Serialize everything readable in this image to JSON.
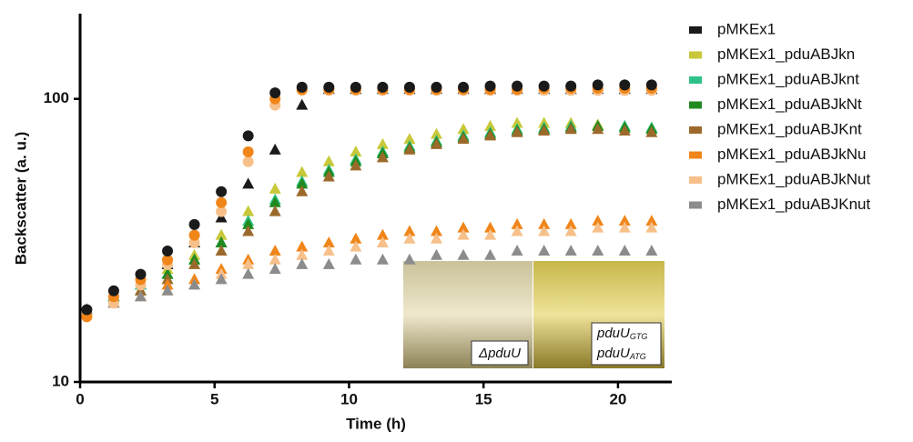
{
  "chart_data": {
    "type": "scatter",
    "x_label": "Time (h)",
    "y_label": "Backscatter (a. u.)",
    "xlim": [
      0,
      22
    ],
    "xticks": [
      0,
      5,
      10,
      15,
      20
    ],
    "ylim": [
      10,
      200
    ],
    "yticks": [
      10,
      100
    ],
    "log_y": true,
    "legend": "right",
    "x": [
      0.25,
      1.25,
      2.25,
      3.25,
      4.25,
      5.25,
      6.25,
      7.25,
      8.25,
      9.25,
      10.25,
      11.25,
      12.25,
      13.25,
      14.25,
      15.25,
      16.25,
      17.25,
      18.25,
      19.25,
      20.25,
      21.25
    ],
    "series": [
      {
        "name": "pMKEx1",
        "color": "#1a1a1a",
        "marker": "triangle",
        "in_legend": true,
        "values": [
          18,
          20,
          22,
          26,
          31,
          38,
          50,
          66,
          95,
          108,
          108,
          108,
          108,
          108,
          108,
          108,
          108,
          108,
          108,
          108,
          108,
          108
        ]
      },
      {
        "name": "pMKEx1_pduABJkn",
        "color": "#c8c83a",
        "marker": "triangle",
        "in_legend": true,
        "values": [
          18,
          20,
          22,
          25,
          28,
          33,
          40,
          48,
          55,
          60,
          65,
          69,
          72,
          75,
          78,
          80,
          82,
          82,
          82,
          81,
          80,
          79
        ]
      },
      {
        "name": "pMKEx1_pduABJknt",
        "color": "#2ec28a",
        "marker": "triangle",
        "in_legend": true,
        "values": [
          18,
          20,
          22,
          24,
          27,
          31,
          37,
          44,
          51,
          56,
          61,
          65,
          68,
          71,
          74,
          76,
          78,
          79,
          80,
          80,
          80,
          79
        ]
      },
      {
        "name": "pMKEx1_pduABJkNt",
        "color": "#1f8a1f",
        "marker": "triangle",
        "in_legend": true,
        "values": [
          18,
          20,
          21,
          24,
          27,
          31,
          36,
          43,
          50,
          55,
          60,
          64,
          67,
          70,
          73,
          75,
          77,
          78,
          79,
          80,
          79,
          78
        ]
      },
      {
        "name": "pMKEx1_pduABJKnt",
        "color": "#9b6a2b",
        "marker": "triangle",
        "in_legend": true,
        "values": [
          18,
          19,
          21,
          23,
          26,
          29,
          34,
          40,
          47,
          53,
          58,
          62,
          66,
          69,
          72,
          74,
          76,
          77,
          78,
          78,
          77,
          76
        ]
      },
      {
        "name": "pMKEx1_pduABJkNu",
        "color": "#f08519",
        "marker": "triangle",
        "in_legend": true,
        "values": [
          18,
          19,
          20,
          22,
          23,
          25,
          27,
          29,
          30,
          31,
          32,
          33,
          34,
          34,
          35,
          35,
          36,
          36,
          36,
          37,
          37,
          37
        ]
      },
      {
        "name": "pMKEx1_pduABJkNut",
        "color": "#f7c08a",
        "marker": "triangle",
        "in_legend": true,
        "values": [
          18,
          19,
          20,
          21,
          22,
          24,
          26,
          27,
          28,
          29,
          30,
          31,
          32,
          32,
          33,
          33,
          34,
          34,
          34,
          35,
          35,
          35
        ]
      },
      {
        "name": "pMKEx1_pduABJKnut",
        "color": "#8c8c8c",
        "marker": "triangle",
        "in_legend": true,
        "values": [
          18,
          19,
          20,
          21,
          22,
          23,
          24,
          25,
          26,
          26,
          27,
          27,
          27,
          28,
          28,
          28,
          29,
          29,
          29,
          29,
          29,
          29
        ]
      },
      {
        "name": "pMKEx1",
        "color": "#f7c08a",
        "marker": "circle",
        "in_legend": false,
        "values": [
          17,
          19,
          22,
          26,
          31,
          40,
          60,
          95,
          107,
          107,
          107,
          107,
          107,
          107,
          107,
          107,
          107,
          107,
          107,
          107,
          107,
          107
        ]
      },
      {
        "name": "pMKEx1_pduABJkNu",
        "color": "#f08519",
        "marker": "circle",
        "in_legend": false,
        "values": [
          17,
          20,
          23,
          27,
          33,
          43,
          65,
          100,
          108,
          108,
          108,
          108,
          108,
          108,
          108,
          108,
          108,
          109,
          109,
          109,
          109,
          109
        ]
      },
      {
        "name": "pMKEx1",
        "color": "#1a1a1a",
        "marker": "circle",
        "in_legend": false,
        "values": [
          18,
          21,
          24,
          29,
          36,
          47,
          74,
          105,
          110,
          110,
          110,
          110,
          110,
          110,
          110,
          111,
          111,
          111,
          111,
          112,
          112,
          112
        ]
      }
    ],
    "inset": {
      "labels": [
        {
          "text": "ΔpduU"
        },
        {
          "text": "pduU",
          "sub": "GTG"
        },
        {
          "text": "pduU",
          "sub": "ATG"
        }
      ]
    }
  }
}
